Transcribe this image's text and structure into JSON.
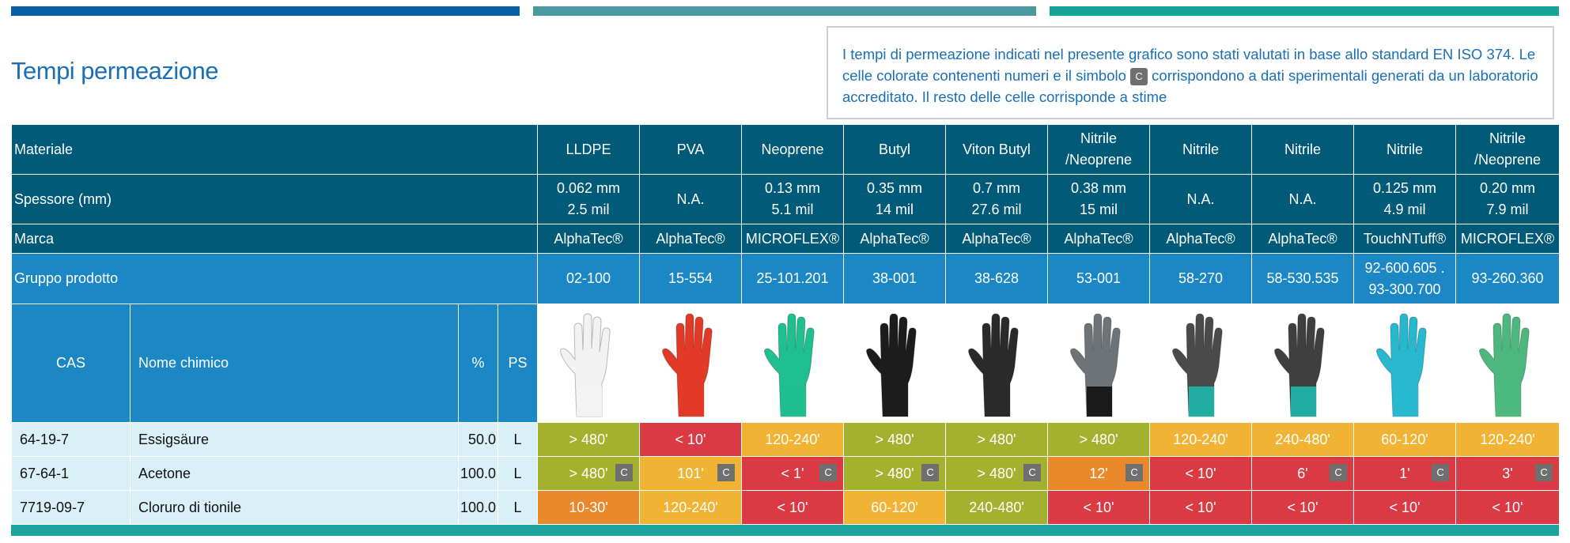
{
  "page": {
    "title": "Tempi permeazione",
    "note_before": "I tempi di permeazione indicati nel presente grafico sono stati valutati in base allo standard EN ISO 374. Le celle colorate contenenti numeri e il simbolo ",
    "note_symbol": "C",
    "note_after": " corrispondono a dati sperimentali generati da un laboratorio accreditato. Il resto delle celle corrisponde a stime"
  },
  "table": {
    "row_labels": {
      "material": "Materiale",
      "thickness": "Spessore (mm)",
      "brand": "Marca",
      "group": "Gruppo prodotto"
    },
    "chem_headers": {
      "cas": "CAS",
      "name": "Nome chimico",
      "pct": "%",
      "ps": "PS"
    },
    "gloves": [
      {
        "material": [
          "LLDPE"
        ],
        "thickness": [
          "0.062 mm",
          "2.5 mil"
        ],
        "brand": "AlphaTec®",
        "group": [
          "02-100"
        ],
        "color": "#f2f2f2",
        "cuff": "#f2f2f2"
      },
      {
        "material": [
          "PVA"
        ],
        "thickness": [
          "N.A."
        ],
        "brand": "AlphaTec®",
        "group": [
          "15-554"
        ],
        "color": "#e23a26",
        "cuff": "#e23a26"
      },
      {
        "material": [
          "Neoprene"
        ],
        "thickness": [
          "0.13 mm",
          "5.1 mil"
        ],
        "brand": "MICROFLEX®",
        "group": [
          "25-101.201"
        ],
        "color": "#1fbf8f",
        "cuff": "#1fbf8f"
      },
      {
        "material": [
          "Butyl"
        ],
        "thickness": [
          "0.35 mm",
          "14 mil"
        ],
        "brand": "AlphaTec®",
        "group": [
          "38-001"
        ],
        "color": "#1c1c1c",
        "cuff": "#1c1c1c"
      },
      {
        "material": [
          "Viton Butyl"
        ],
        "thickness": [
          "0.7 mm",
          "27.6 mil"
        ],
        "brand": "AlphaTec®",
        "group": [
          "38-628"
        ],
        "color": "#2a2a2a",
        "cuff": "#2a2a2a"
      },
      {
        "material": [
          "Nitrile",
          "/Neoprene"
        ],
        "thickness": [
          "0.38 mm",
          "15 mil"
        ],
        "brand": "AlphaTec®",
        "group": [
          "53-001"
        ],
        "color": "#6e7378",
        "cuff": "#151515"
      },
      {
        "material": [
          "Nitrile"
        ],
        "thickness": [
          "N.A."
        ],
        "brand": "AlphaTec®",
        "group": [
          "58-270"
        ],
        "color": "#4a4a4a",
        "cuff": "#1fb3a6"
      },
      {
        "material": [
          "Nitrile"
        ],
        "thickness": [
          "N.A."
        ],
        "brand": "AlphaTec®",
        "group": [
          "58-530.535"
        ],
        "color": "#3f3f3f",
        "cuff": "#1fb3a6"
      },
      {
        "material": [
          "Nitrile"
        ],
        "thickness": [
          "0.125 mm",
          "4.9 mil"
        ],
        "brand": "TouchNTuff®",
        "group": [
          "92-600.605 .",
          "93-300.700"
        ],
        "color": "#27b8cf",
        "cuff": "#27b8cf"
      },
      {
        "material": [
          "Nitrile",
          "/Neoprene"
        ],
        "thickness": [
          "0.20 mm",
          "7.9 mil"
        ],
        "brand": "MICROFLEX®",
        "group": [
          "93-260.360"
        ],
        "color": "#4cb87d",
        "cuff": "#4cb87d"
      }
    ],
    "chemicals": [
      {
        "cas": "64-19-7",
        "name": "Essigsäure",
        "pct": "50.0",
        "ps": "L",
        "results": [
          {
            "text": "> 480'",
            "color": "lime",
            "c": false
          },
          {
            "text": "< 10'",
            "color": "red",
            "c": false
          },
          {
            "text": "120-240'",
            "color": "amber",
            "c": false
          },
          {
            "text": "> 480'",
            "color": "lime",
            "c": false
          },
          {
            "text": "> 480'",
            "color": "lime",
            "c": false
          },
          {
            "text": "> 480'",
            "color": "lime",
            "c": false
          },
          {
            "text": "120-240'",
            "color": "amber",
            "c": false
          },
          {
            "text": "240-480'",
            "color": "amber",
            "c": false
          },
          {
            "text": "60-120'",
            "color": "amber",
            "c": false
          },
          {
            "text": "120-240'",
            "color": "amber",
            "c": false
          }
        ]
      },
      {
        "cas": "67-64-1",
        "name": "Acetone",
        "pct": "100.0",
        "ps": "L",
        "results": [
          {
            "text": "> 480'",
            "color": "lime",
            "c": true
          },
          {
            "text": "101'",
            "color": "amber",
            "c": true
          },
          {
            "text": "< 1'",
            "color": "red",
            "c": true
          },
          {
            "text": "> 480'",
            "color": "lime",
            "c": true
          },
          {
            "text": "> 480'",
            "color": "lime",
            "c": true
          },
          {
            "text": "12'",
            "color": "orange",
            "c": true
          },
          {
            "text": "< 10'",
            "color": "red",
            "c": false
          },
          {
            "text": "6'",
            "color": "red",
            "c": true
          },
          {
            "text": "1'",
            "color": "red",
            "c": true
          },
          {
            "text": "3'",
            "color": "red",
            "c": true
          }
        ]
      },
      {
        "cas": "7719-09-7",
        "name": "Cloruro di tionile",
        "pct": "100.0",
        "ps": "L",
        "results": [
          {
            "text": "10-30'",
            "color": "orange",
            "c": false
          },
          {
            "text": "120-240'",
            "color": "amber",
            "c": false
          },
          {
            "text": "< 10'",
            "color": "red",
            "c": false
          },
          {
            "text": "60-120'",
            "color": "amber",
            "c": false
          },
          {
            "text": "240-480'",
            "color": "lime",
            "c": false
          },
          {
            "text": "< 10'",
            "color": "red",
            "c": false
          },
          {
            "text": "< 10'",
            "color": "red",
            "c": false
          },
          {
            "text": "< 10'",
            "color": "red",
            "c": false
          },
          {
            "text": "< 10'",
            "color": "red",
            "c": false
          },
          {
            "text": "< 10'",
            "color": "red",
            "c": false
          }
        ]
      }
    ]
  }
}
